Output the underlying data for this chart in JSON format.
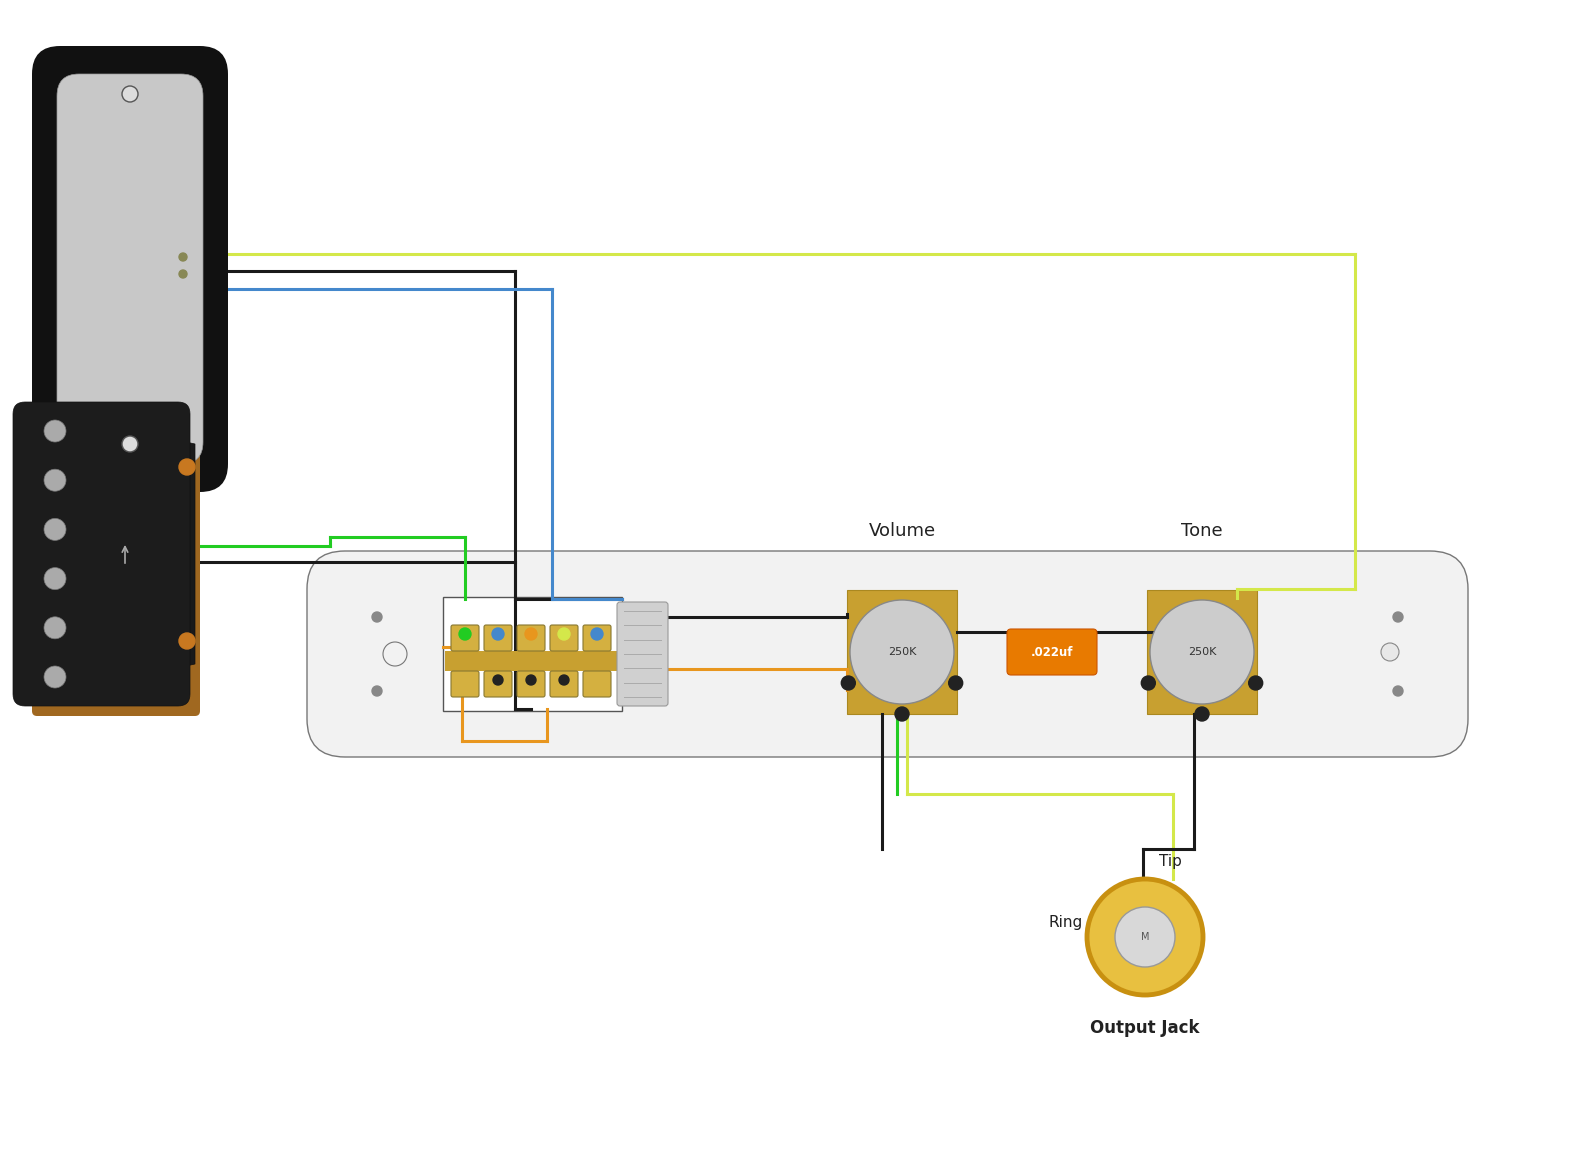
{
  "bg_color": "#ffffff",
  "fig_width": 15.72,
  "fig_height": 11.49,
  "wire_colors": {
    "yellow": "#d4e84a",
    "black": "#1a1a1a",
    "blue": "#4488cc",
    "green": "#22cc22",
    "orange": "#e8961e"
  },
  "labels": {
    "volume": "Volume",
    "tone": "Tone",
    "pot_value": "250K",
    "cap_value": ".022uf",
    "tip": "Tip",
    "ring": "Ring",
    "output_jack": "Output Jack"
  }
}
